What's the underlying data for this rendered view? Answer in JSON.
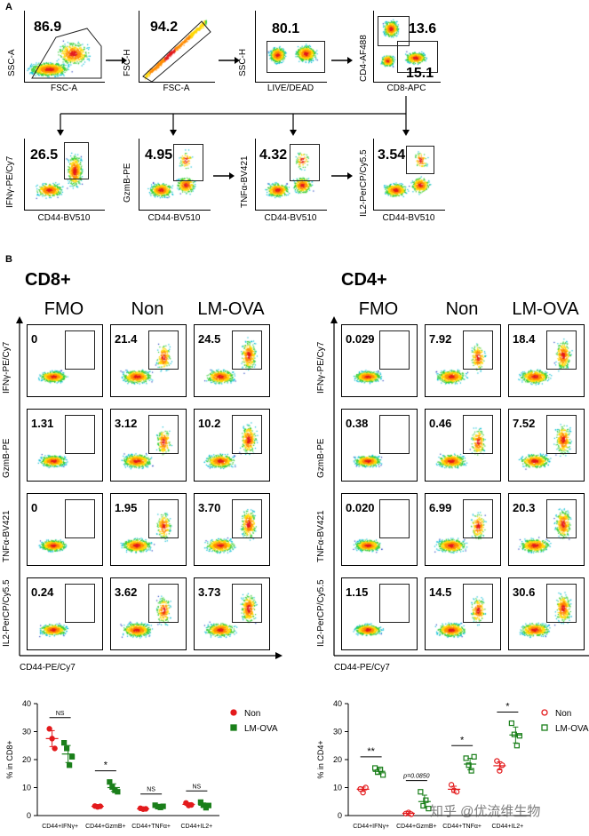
{
  "panel_a": {
    "letter": "A",
    "gating": [
      {
        "value": "86.9",
        "ylabel": "SSC-A",
        "xlabel": "FSC-A"
      },
      {
        "value": "94.2",
        "ylabel": "FSC-H",
        "xlabel": "FSC-A"
      },
      {
        "value": "80.1",
        "ylabel": "SSC-H",
        "xlabel": "LIVE/DEAD"
      },
      {
        "value_top": "13.6",
        "value_bottom": "15.1",
        "ylabel": "CD4-AF488",
        "xlabel": "CD8-APC"
      }
    ],
    "readouts": [
      {
        "value": "26.5",
        "ylabel": "IFNγ-PE/Cy7",
        "xlabel": "CD44-BV510"
      },
      {
        "value": "4.95",
        "ylabel": "GzmB-PE",
        "xlabel": "CD44-BV510"
      },
      {
        "value": "4.32",
        "ylabel": "TNFα-BV421",
        "xlabel": "CD44-BV510"
      },
      {
        "value": "3.54",
        "ylabel": "IL2-PerCP/Cy5.5",
        "xlabel": "CD44-BV510"
      }
    ]
  },
  "panel_b": {
    "letter": "B",
    "cd8": {
      "title": "CD8+",
      "columns": [
        "FMO",
        "Non",
        "LM-OVA"
      ],
      "rows": [
        {
          "ylabel": "IFNγ-PE/Cy7",
          "values": [
            "0",
            "21.4",
            "24.5"
          ]
        },
        {
          "ylabel": "GzmB-PE",
          "values": [
            "1.31",
            "3.12",
            "10.2"
          ]
        },
        {
          "ylabel": "TNFα-BV421",
          "values": [
            "0",
            "1.95",
            "3.70"
          ]
        },
        {
          "ylabel": "IL2-PerCP/Cy5.5",
          "values": [
            "0.24",
            "3.62",
            "3.73"
          ]
        }
      ],
      "xlabel": "CD44-PE/Cy7"
    },
    "cd4": {
      "title": "CD4+",
      "columns": [
        "FMO",
        "Non",
        "LM-OVA"
      ],
      "rows": [
        {
          "ylabel": "IFNγ-PE/Cy7",
          "values": [
            "0.029",
            "7.92",
            "18.4"
          ]
        },
        {
          "ylabel": "GzmB-PE",
          "values": [
            "0.38",
            "0.46",
            "7.52"
          ]
        },
        {
          "ylabel": "TNFα-BV421",
          "values": [
            "0.020",
            "6.99",
            "20.3"
          ]
        },
        {
          "ylabel": "IL2-PerCP/Cy5.5",
          "values": [
            "1.15",
            "14.5",
            "30.6"
          ]
        }
      ],
      "xlabel": "CD44-PE/Cy7"
    }
  },
  "chart_data": [
    {
      "type": "scatter",
      "title": "",
      "ylabel": "% in CD8+",
      "ylim": [
        0,
        40
      ],
      "yticks": [
        "0",
        "10",
        "20",
        "30",
        "40"
      ],
      "categories": [
        "CD44+IFNγ+",
        "CD44+GzmB+",
        "CD44+TNFα+",
        "CD44+IL2+"
      ],
      "significance": [
        "NS",
        "*",
        "NS",
        "NS"
      ],
      "legend": [
        "Non",
        "LM-OVA"
      ],
      "colors": {
        "Non": "#e31a1c",
        "LM-OVA": "#1a7f1a"
      },
      "series": [
        {
          "name": "Non",
          "filled": true,
          "values": [
            [
              31,
              27.5,
              24
            ],
            [
              3.4,
              3.1,
              3.3
            ],
            [
              2.6,
              2.3,
              2.4
            ],
            [
              4.5,
              3.6,
              3.8
            ]
          ],
          "mean": [
            27.5,
            3.3,
            2.4,
            4.0
          ]
        },
        {
          "name": "LM-OVA",
          "filled": true,
          "values": [
            [
              26,
              24,
              18,
              21
            ],
            [
              12,
              10.2,
              9,
              8.5
            ],
            [
              3.7,
              3.2,
              2.9,
              3.3
            ],
            [
              4.8,
              3.7,
              2.8,
              3.6
            ]
          ],
          "mean": [
            22,
            10,
            3.3,
            3.7
          ]
        }
      ]
    },
    {
      "type": "scatter",
      "title": "",
      "ylabel": "% in CD4+",
      "ylim": [
        0,
        40
      ],
      "yticks": [
        "0",
        "10",
        "20",
        "30",
        "40"
      ],
      "categories": [
        "CD44+IFNγ+",
        "CD44+GzmB+",
        "CD44+TNFα+",
        "CD44+IL2+"
      ],
      "significance": [
        "**",
        "p=0.0850",
        "*",
        "*"
      ],
      "legend": [
        "Non",
        "LM-OVA"
      ],
      "colors": {
        "Non": "#e31a1c",
        "LM-OVA": "#1a7f1a"
      },
      "series": [
        {
          "name": "Non",
          "filled": false,
          "values": [
            [
              9.5,
              8.2,
              10
            ],
            [
              0.7,
              1.1,
              0.5
            ],
            [
              11,
              9,
              8.5
            ],
            [
              19.5,
              16,
              18
            ]
          ],
          "mean": [
            9.4,
            0.8,
            9.4,
            17.8
          ]
        },
        {
          "name": "LM-OVA",
          "filled": false,
          "values": [
            [
              17,
              15.5,
              16.5,
              14.5
            ],
            [
              8.5,
              3.5,
              5.5,
              2.5
            ],
            [
              20.5,
              18,
              16,
              21
            ],
            [
              33,
              29,
              25,
              28.5
            ]
          ],
          "mean": [
            15.8,
            5,
            18.4,
            28.8
          ]
        }
      ]
    }
  ],
  "watermark": "知乎 @优流维生物"
}
